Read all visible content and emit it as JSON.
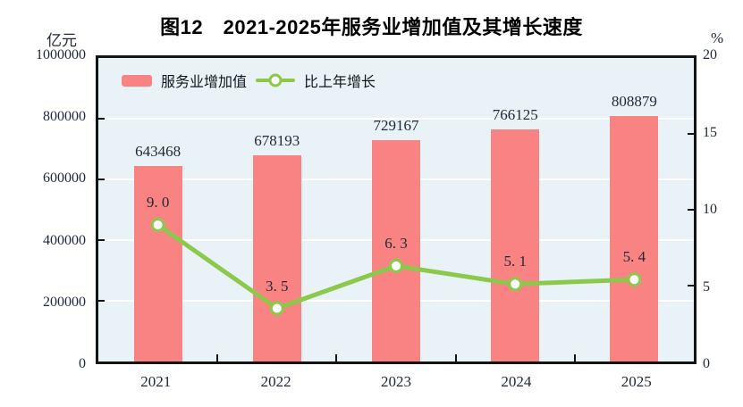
{
  "figure": {
    "title": "图12　2021-2025年服务业增加值及其增长速度"
  },
  "colors": {
    "bar": "#f98383",
    "line": "#8cc94b",
    "marker_fill": "#ffffff",
    "plot_background": "#e9f2f7",
    "gridline": "#ffffff",
    "axis": "#141414",
    "text": "#20293a"
  },
  "chart_data": {
    "type": "combo",
    "title": "图12　2021-2025年服务业增加值及其增长速度",
    "categories": [
      "2021",
      "2022",
      "2023",
      "2024",
      "2025"
    ],
    "series": [
      {
        "name": "服务业增加值",
        "type": "bar",
        "axis": "left",
        "color": "#f98383",
        "values": [
          643468,
          678193,
          729167,
          766125,
          808879
        ],
        "labels": [
          "643468",
          "678193",
          "729167",
          "766125",
          "808879"
        ]
      },
      {
        "name": "比上年增长",
        "type": "line",
        "axis": "right",
        "color": "#8cc94b",
        "values": [
          9.0,
          3.5,
          6.3,
          5.1,
          5.4
        ],
        "labels": [
          "9. 0",
          "3. 5",
          "6. 3",
          "5. 1",
          "5. 4"
        ]
      }
    ],
    "left_axis": {
      "label": "亿元",
      "min": 0,
      "max": 1000000,
      "ticks": [
        "1000000",
        "800000",
        "600000",
        "400000",
        "200000",
        "0"
      ]
    },
    "right_axis": {
      "label": "%",
      "min": 0,
      "max": 20,
      "ticks": [
        "20",
        "15",
        "10",
        "5",
        "0"
      ]
    },
    "grid": true,
    "legend_position": "top-left-inside"
  }
}
